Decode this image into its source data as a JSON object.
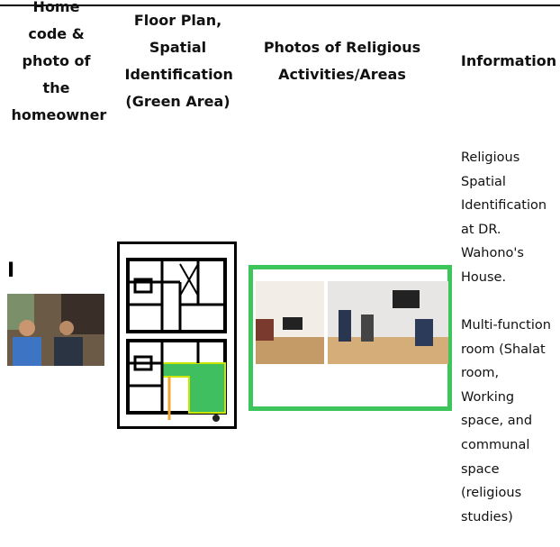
{
  "table": {
    "header": [
      "Home code & photo of the homeowner",
      "Floor Plan, Spatial Identification (Green Area)",
      "Photos of Religious Activities/Areas",
      "Information"
    ],
    "rows": [
      {
        "code": "I",
        "information": [
          "Religious Spatial Identification at DR. Wahono's House.",
          "Multi-function room (Shalat room, Working space, and communal space (religious studies)"
        ]
      }
    ]
  }
}
